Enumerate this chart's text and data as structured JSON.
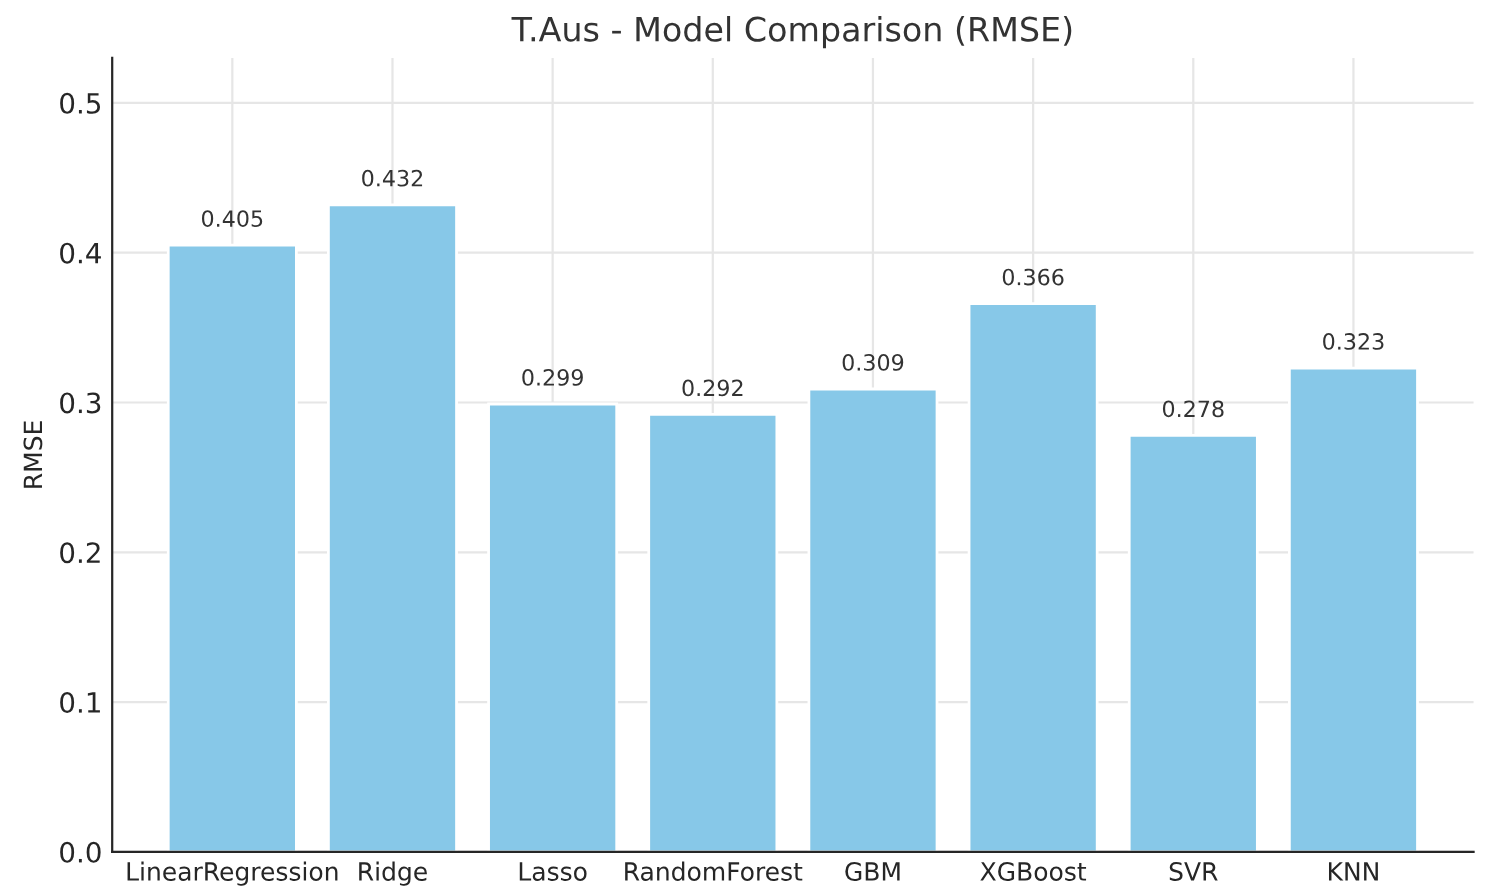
{
  "chart_data": {
    "type": "bar",
    "title": "T.Aus - Model Comparison (RMSE)",
    "ylabel": "RMSE",
    "categories": [
      "LinearRegression",
      "Ridge",
      "Lasso",
      "RandomForest",
      "GBM",
      "XGBoost",
      "SVR",
      "KNN"
    ],
    "values": [
      0.405,
      0.432,
      0.299,
      0.292,
      0.309,
      0.366,
      0.278,
      0.323
    ],
    "color": "#87c8e8",
    "ylim": [
      0,
      0.53
    ],
    "yticks": [
      {
        "value": 0,
        "label": "0.0"
      },
      0.1,
      0.2,
      0.3,
      0.4,
      0.5
    ],
    "grid": true,
    "data_labels": true
  }
}
